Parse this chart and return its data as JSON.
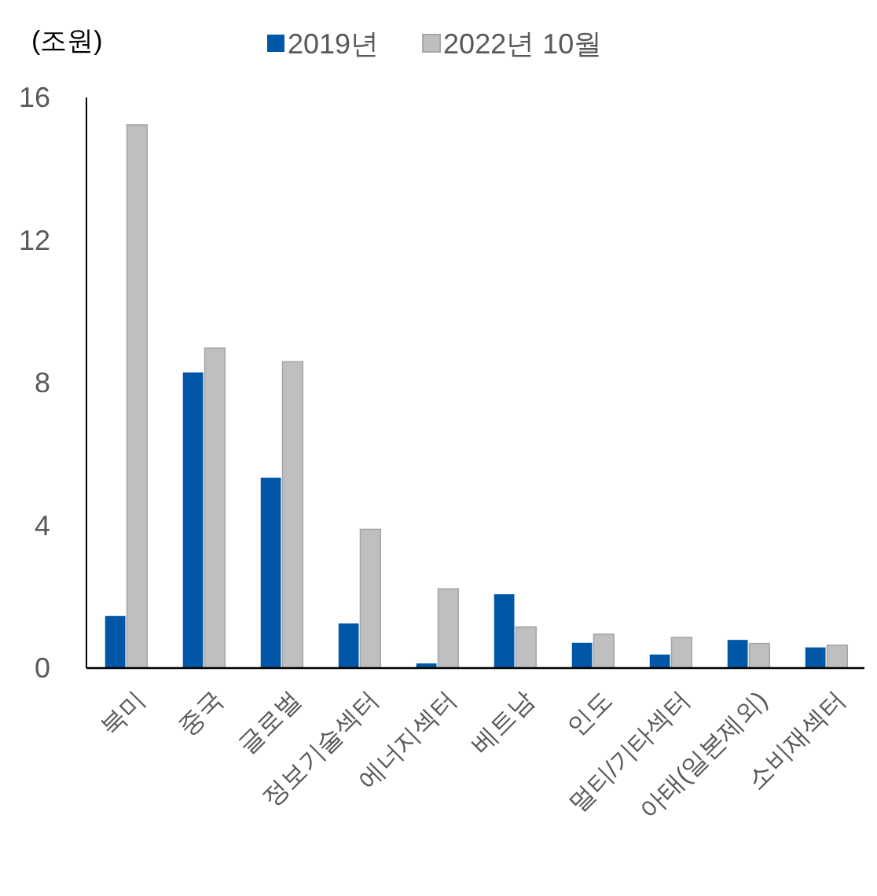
{
  "chart_data": {
    "type": "bar",
    "ylabel": "(조원)",
    "categories": [
      "북미",
      "중국",
      "글로벌",
      "정보기술섹터",
      "에너지섹터",
      "베트남",
      "인도",
      "멀티/기타섹터",
      "아태(일본제외)",
      "소비재섹터"
    ],
    "series": [
      {
        "name": "2019년",
        "color": "#0057a8",
        "values": [
          1.46,
          8.29,
          5.34,
          1.25,
          0.13,
          2.07,
          0.71,
          0.38,
          0.79,
          0.58
        ]
      },
      {
        "name": "2022년 10월",
        "color": "#bfbfbf",
        "values": [
          15.23,
          8.97,
          8.59,
          3.89,
          2.22,
          1.15,
          0.95,
          0.86,
          0.69,
          0.64
        ]
      }
    ],
    "ylim": [
      0,
      16
    ],
    "yticks": [
      0,
      4,
      8,
      12,
      16
    ],
    "grid": false,
    "legend": "top"
  }
}
